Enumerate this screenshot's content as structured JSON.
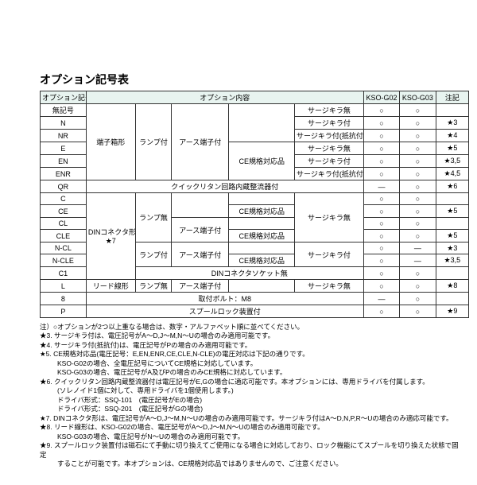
{
  "title": "オプション記号表",
  "headers": {
    "code": "オプション記号",
    "content": "オプション内容",
    "g02": "KSO-G02",
    "g03": "KSO-G03",
    "note": "注記"
  },
  "codes": {
    "none": "無記号",
    "N": "N",
    "NR": "NR",
    "E": "E",
    "EN": "EN",
    "ENR": "ENR",
    "QR": "QR",
    "C": "C",
    "CE": "CE",
    "CL": "CL",
    "CLE": "CLE",
    "NCL": "N-CL",
    "NCLE": "N-CLE",
    "C1": "C1",
    "L": "L",
    "8": "8",
    "P": "P"
  },
  "cells": {
    "box": "端子箱形",
    "lampOn": "ランプ付",
    "earth": "アース端子付",
    "ce": "CE規格対応品",
    "din": "DINコネクタ形",
    "din7": "★7",
    "lampOff": "ランプ無",
    "lead": "リード線形",
    "bolt": "取付ボルト：M8",
    "spool": "スプールロック装置付",
    "dinSocket": "DINコネクタソケット無",
    "quick": "クイックリタン回路内蔵整流器付",
    "skNone": "サージキラ無",
    "skOn": "サージキラ付",
    "skR": "サージキラ付(抵抗付)"
  },
  "mark": {
    "o": "○",
    "d": "—"
  },
  "nref": {
    "s3": "★3",
    "s4": "★4",
    "s5": "★5",
    "s35": "★3,5",
    "s45": "★4,5",
    "s6": "★6",
    "s8": "★8",
    "s9": "★9"
  },
  "notes": {
    "l0": "注）○オプションが2つ以上重なる場合は、数字・アルファベット順に並べてください。",
    "l1": "★3. サージキラ付は、電圧記号がA～D,J～M,N～Uの場合のみ適用可能です。",
    "l2": "★4. サージキラ付(抵抗付)は、電圧記号がPの場合のみ適用可能です。",
    "l3": "★5. CE規格対応品(電圧記号：E,EN,ENR,CE,CLE,N-CLE)の電圧対応は下記の通りです。",
    "l3a": "KSO-G02の場合、全電圧記号についてCE規格に対応しています。",
    "l3b": "KSO-G03の場合、電圧記号がA及びPの場合のみCE規格に対応しています。",
    "l4": "★6. クイックリタン回路内蔵整流器付は電圧記号がE,Gの場合に適応可能です。本オプションには、専用ドライバを付属します。",
    "l4a": "(ソレノイド1個に対して、専用ドライバを1個使用します。)",
    "l4b": "ドライバ形式：SSQ-101　(電圧記号がEの場合)",
    "l4c": "ドライバ形式：SSQ-201　(電圧記号がGの場合)",
    "l5": "★7. DINコネクタ形は、電圧記号がA～D,J～M,N～Uの場合のみ適用可能です。サージキラ付はA～D,N,P,R～Uの場合のみ適応可能です。",
    "l6": "★8. リード線形は、KSO-G02の場合、電圧記号がA～D,J～M,N～Uの場合のみ適用可能です。",
    "l6a": "KSO-G03の場合、電圧記号がN～Uの場合のみ適用可能です。",
    "l7": "★9. スプールロック装置付は磁石にて手動に切り換えてご使用になる場合に対応しており、ロック機能にてスプールを切り換えた状態で固定",
    "l7a": "することが可能です。本オプションは、CE規格対応品ではありませんので、ご注意ください。"
  }
}
